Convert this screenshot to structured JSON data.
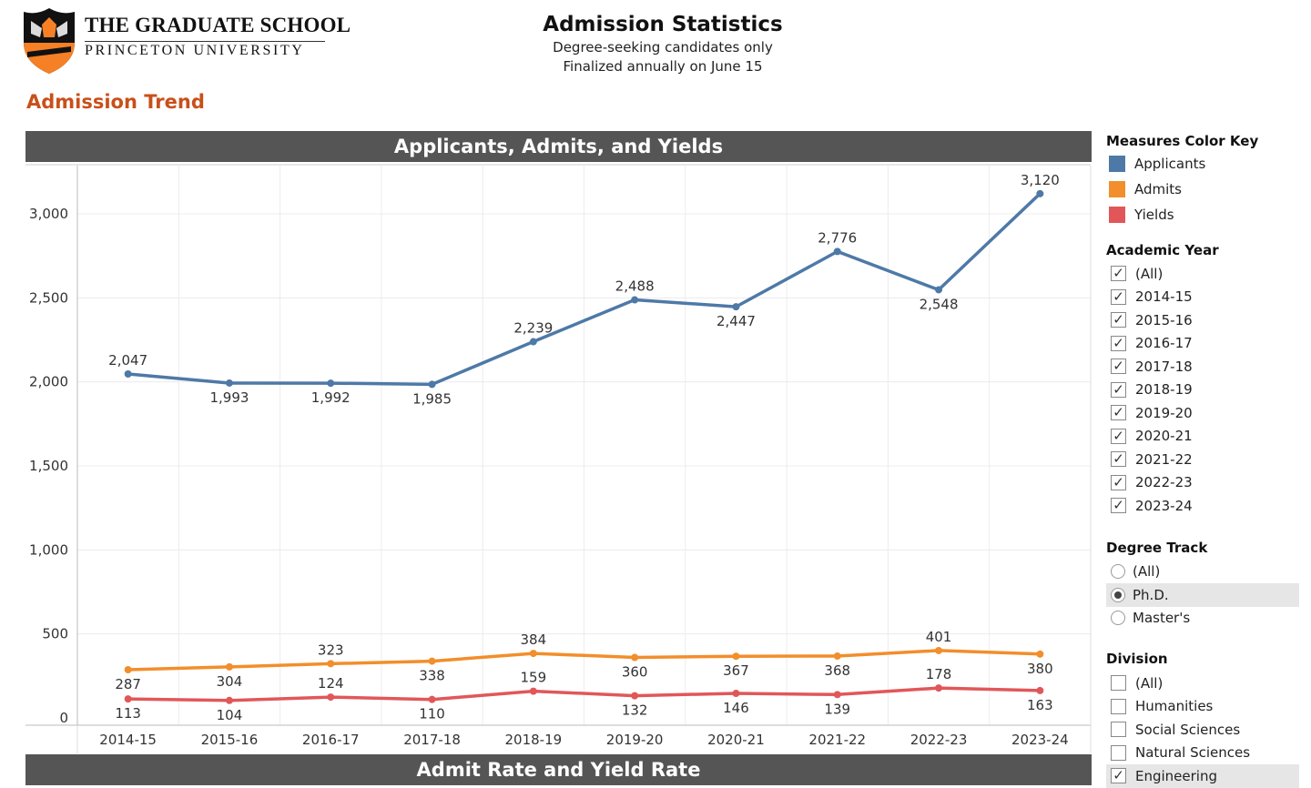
{
  "header": {
    "logo_line1": "THE GRADUATE SCHOOL",
    "logo_line2": "PRINCETON UNIVERSITY",
    "title": "Admission Statistics",
    "subtitle1": "Degree-seeking candidates only",
    "subtitle2": "Finalized annually on June 15"
  },
  "section_title": "Admission Trend",
  "panels": {
    "top_title": "Applicants, Admits, and Yields",
    "bottom_title": "Admit Rate and Yield Rate"
  },
  "chart_data": {
    "type": "line",
    "title": "Applicants, Admits, and Yields",
    "categories": [
      "2014-15",
      "2015-16",
      "2016-17",
      "2017-18",
      "2018-19",
      "2019-20",
      "2020-21",
      "2021-22",
      "2022-23",
      "2023-24"
    ],
    "ylim": [
      0,
      3250
    ],
    "yticks": [
      0,
      500,
      1000,
      1500,
      2000,
      2500,
      3000
    ],
    "grid": true,
    "series": [
      {
        "name": "Applicants",
        "color": "#4e79a7",
        "values": [
          2047,
          1993,
          1992,
          1985,
          2239,
          2488,
          2447,
          2776,
          2548,
          3120
        ]
      },
      {
        "name": "Admits",
        "color": "#f28e2b",
        "values": [
          287,
          304,
          323,
          338,
          384,
          360,
          367,
          368,
          401,
          380
        ]
      },
      {
        "name": "Yields",
        "color": "#e15759",
        "values": [
          113,
          104,
          124,
          110,
          159,
          132,
          146,
          139,
          178,
          163
        ]
      }
    ]
  },
  "sidebar": {
    "color_key_title": "Measures Color Key",
    "color_key": [
      {
        "label": "Applicants",
        "color": "#4e79a7"
      },
      {
        "label": "Admits",
        "color": "#f28e2b"
      },
      {
        "label": "Yields",
        "color": "#e15759"
      }
    ],
    "year_title": "Academic Year",
    "years": [
      {
        "label": "(All)",
        "checked": true
      },
      {
        "label": "2014-15",
        "checked": true
      },
      {
        "label": "2015-16",
        "checked": true
      },
      {
        "label": "2016-17",
        "checked": true
      },
      {
        "label": "2017-18",
        "checked": true
      },
      {
        "label": "2018-19",
        "checked": true
      },
      {
        "label": "2019-20",
        "checked": true
      },
      {
        "label": "2020-21",
        "checked": true
      },
      {
        "label": "2021-22",
        "checked": true
      },
      {
        "label": "2022-23",
        "checked": true
      },
      {
        "label": "2023-24",
        "checked": true
      }
    ],
    "track_title": "Degree Track",
    "tracks": [
      {
        "label": "(All)",
        "selected": false
      },
      {
        "label": "Ph.D.",
        "selected": true
      },
      {
        "label": "Master's",
        "selected": false
      }
    ],
    "division_title": "Division",
    "divisions": [
      {
        "label": "(All)",
        "checked": false
      },
      {
        "label": "Humanities",
        "checked": false
      },
      {
        "label": "Social Sciences",
        "checked": false
      },
      {
        "label": "Natural Sciences",
        "checked": false
      },
      {
        "label": "Engineering",
        "checked": true
      }
    ]
  }
}
